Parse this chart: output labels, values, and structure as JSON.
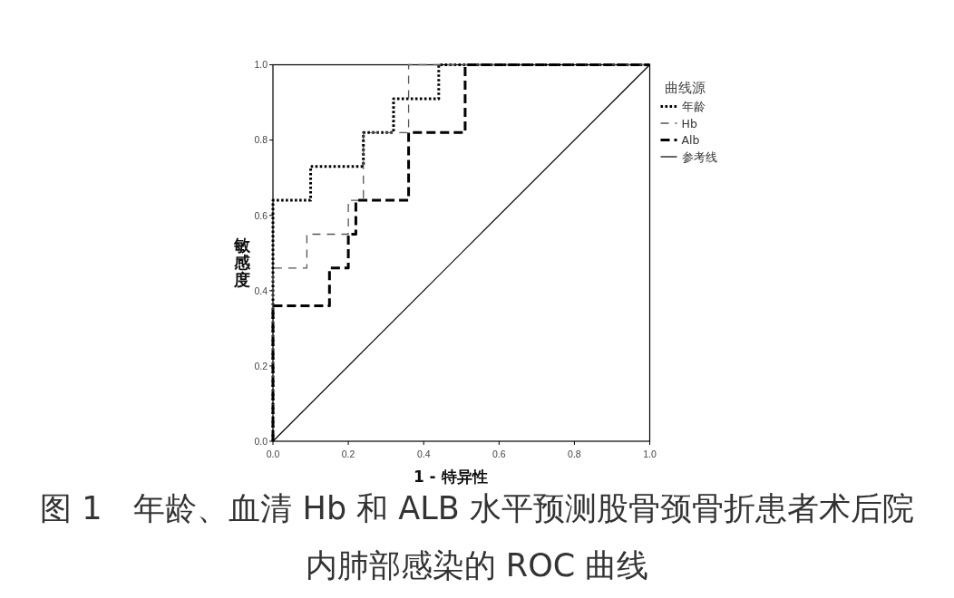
{
  "chart_data": {
    "type": "step",
    "title": "图 1　年龄、血清 Hb 和 ALB 水平预测股骨颈骨折患者术后院内肺部感染的 ROC 曲线",
    "xlabel": "1 - 特异性",
    "ylabel": "敏感度",
    "legend_title": "曲线源",
    "legend": "right",
    "xlim": [
      0,
      1
    ],
    "ylim": [
      0,
      1
    ],
    "xticks": [
      {
        "value": 0,
        "label": "0.0"
      },
      0.2,
      0.4,
      0.6,
      0.8,
      {
        "value": 1,
        "label": "1.0"
      }
    ],
    "yticks": [
      {
        "value": 0,
        "label": "0.0"
      },
      0.2,
      0.4,
      0.6,
      0.8,
      {
        "value": 1,
        "label": "1.0"
      }
    ],
    "series": [
      {
        "name": "年龄",
        "type": "step",
        "color": "#000000",
        "line_style": "dotted",
        "x": [
          0,
          0,
          0.1,
          0.24,
          0.32,
          0.44,
          1
        ],
        "values": [
          0,
          0.64,
          0.73,
          0.82,
          0.91,
          1,
          1
        ]
      },
      {
        "name": "Hb",
        "type": "step",
        "color": "#555555",
        "line_style": "dashed",
        "x": [
          0,
          0,
          0.09,
          0.2,
          0.24,
          0.36,
          1
        ],
        "values": [
          0,
          0.46,
          0.55,
          0.64,
          0.82,
          1,
          1
        ]
      },
      {
        "name": "Alb",
        "type": "step",
        "color": "#000000",
        "line_style": "dashed",
        "x": [
          0,
          0,
          0.15,
          0.2,
          0.22,
          0.36,
          0.51,
          1
        ],
        "values": [
          0,
          0.36,
          0.46,
          0.55,
          0.64,
          0.82,
          1,
          1
        ]
      },
      {
        "name": "参考线",
        "type": "line",
        "color": "#000000",
        "line_style": "solid",
        "x": [
          0,
          1
        ],
        "values": [
          0,
          1
        ]
      }
    ]
  }
}
